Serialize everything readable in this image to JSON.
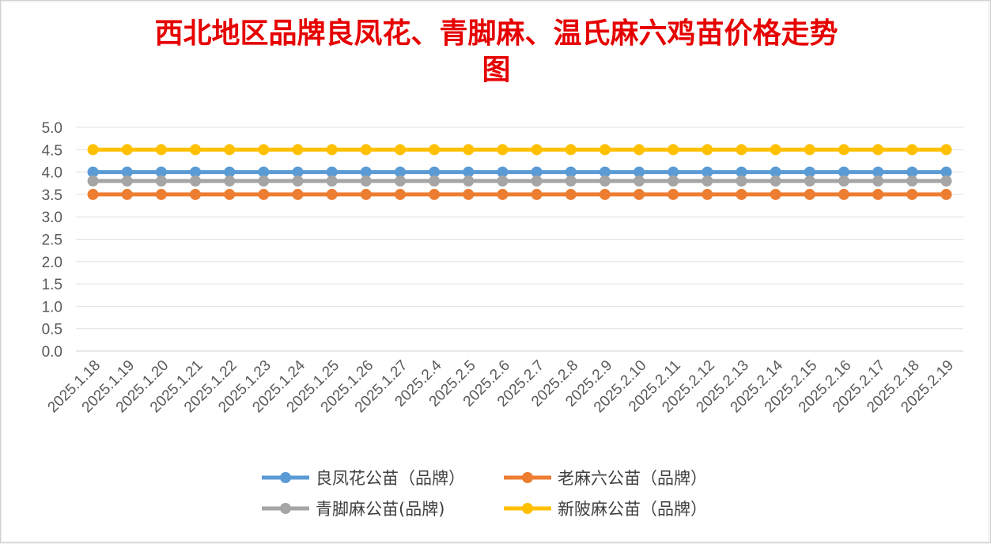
{
  "chart_data": {
    "type": "line",
    "title": [
      "西北地区品牌良凤花、青脚麻、温氏麻六鸡苗价格走势",
      "图"
    ],
    "xlabel": "",
    "ylabel": "",
    "ylim": [
      0,
      5
    ],
    "y_ticks": [
      "0.0",
      "0.5",
      "1.0",
      "1.5",
      "2.0",
      "2.5",
      "3.0",
      "3.5",
      "4.0",
      "4.5",
      "5.0"
    ],
    "grid": true,
    "legend_position": "bottom",
    "categories": [
      "2025.1.18",
      "2025.1.19",
      "2025.1.20",
      "2025.1.21",
      "2025.1.22",
      "2025.1.23",
      "2025.1.24",
      "2025.1.25",
      "2025.1.26",
      "2025.1.27",
      "2025.2.4",
      "2025.2.5",
      "2025.2.6",
      "2025.2.7",
      "2025.2.8",
      "2025.2.9",
      "2025.2.10",
      "2025.2.11",
      "2025.2.12",
      "2025.2.13",
      "2025.2.14",
      "2025.2.15",
      "2025.2.16",
      "2025.2.17",
      "2025.2.18",
      "2025.2.19"
    ],
    "series": [
      {
        "name": "良凤花公苗（品牌）",
        "color": "#5b9bd5",
        "values": [
          4.0,
          4.0,
          4.0,
          4.0,
          4.0,
          4.0,
          4.0,
          4.0,
          4.0,
          4.0,
          4.0,
          4.0,
          4.0,
          4.0,
          4.0,
          4.0,
          4.0,
          4.0,
          4.0,
          4.0,
          4.0,
          4.0,
          4.0,
          4.0,
          4.0,
          4.0
        ]
      },
      {
        "name": "老麻六公苗（品牌）",
        "color": "#ed7d31",
        "values": [
          3.5,
          3.5,
          3.5,
          3.5,
          3.5,
          3.5,
          3.5,
          3.5,
          3.5,
          3.5,
          3.5,
          3.5,
          3.5,
          3.5,
          3.5,
          3.5,
          3.5,
          3.5,
          3.5,
          3.5,
          3.5,
          3.5,
          3.5,
          3.5,
          3.5,
          3.5
        ]
      },
      {
        "name": "青脚麻公苗(品牌)",
        "color": "#a5a5a5",
        "values": [
          3.8,
          3.8,
          3.8,
          3.8,
          3.8,
          3.8,
          3.8,
          3.8,
          3.8,
          3.8,
          3.8,
          3.8,
          3.8,
          3.8,
          3.8,
          3.8,
          3.8,
          3.8,
          3.8,
          3.8,
          3.8,
          3.8,
          3.8,
          3.8,
          3.8,
          3.8
        ]
      },
      {
        "name": "新陂麻公苗（品牌）",
        "color": "#ffc000",
        "values": [
          4.5,
          4.5,
          4.5,
          4.5,
          4.5,
          4.5,
          4.5,
          4.5,
          4.5,
          4.5,
          4.5,
          4.5,
          4.5,
          4.5,
          4.5,
          4.5,
          4.5,
          4.5,
          4.5,
          4.5,
          4.5,
          4.5,
          4.5,
          4.5,
          4.5,
          4.5
        ]
      }
    ]
  }
}
